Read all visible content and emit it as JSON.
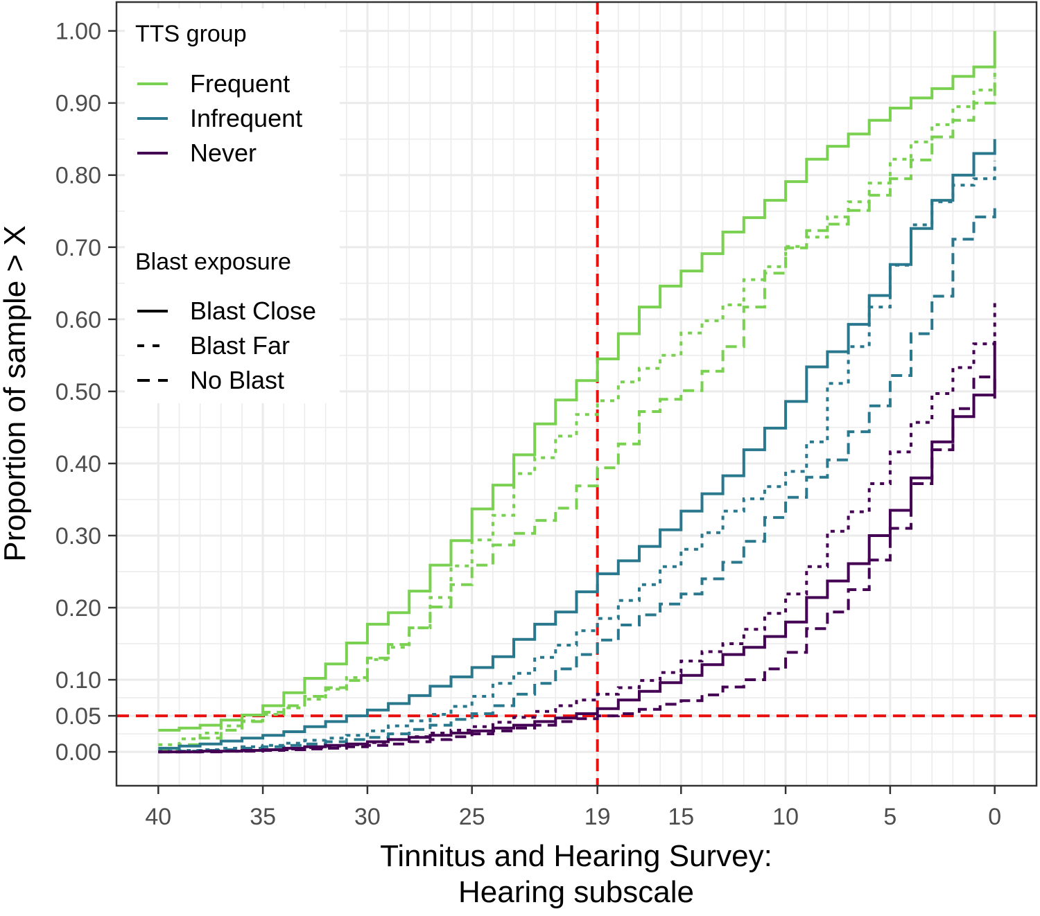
{
  "chart_data": {
    "type": "line",
    "subtype": "step",
    "title": "",
    "xlabel_lines": [
      "Tinnitus and Hearing Survey:",
      "Hearing subscale"
    ],
    "ylabel": "Proportion of sample > X",
    "x_reversed": true,
    "xlim": [
      42,
      -2
    ],
    "ylim": [
      -0.047,
      1.04
    ],
    "x_ticks": [
      40,
      35,
      30,
      25,
      19,
      15,
      10,
      5,
      0
    ],
    "x_tick_labels": [
      "40",
      "35",
      "30",
      "25",
      "19",
      "15",
      "10",
      "5",
      "0"
    ],
    "y_ticks": [
      0,
      0.05,
      0.1,
      0.2,
      0.3,
      0.4,
      0.5,
      0.6,
      0.7,
      0.8,
      0.9,
      1.0
    ],
    "y_tick_labels": [
      "0.00",
      "0.05",
      "0.10",
      "0.20",
      "0.30",
      "0.40",
      "0.50",
      "0.60",
      "0.70",
      "0.80",
      "0.90",
      "1.00"
    ],
    "grid": true,
    "reference_lines": [
      {
        "axis": "x",
        "value": 19,
        "color": "#e8110f",
        "dash": "dashed"
      },
      {
        "axis": "y",
        "value": 0.05,
        "color": "#e8110f",
        "dash": "dashed"
      }
    ],
    "legend": {
      "position": "top-left",
      "groups": [
        {
          "title": "TTS group",
          "entries": [
            {
              "label": "Frequent",
              "color": "#7ad151"
            },
            {
              "label": "Infrequent",
              "color": "#2a788e"
            },
            {
              "label": "Never",
              "color": "#440154"
            }
          ]
        },
        {
          "title": "Blast exposure",
          "entries": [
            {
              "label": "Blast Close",
              "dash": "solid"
            },
            {
              "label": "Blast Far",
              "dash": "dotted"
            },
            {
              "label": "No Blast",
              "dash": "dashed"
            }
          ]
        }
      ]
    },
    "series": [
      {
        "name": "Frequent / Blast Close",
        "tts": "Frequent",
        "blast": "Blast Close",
        "color": "#7ad151",
        "dash": "solid",
        "x": [
          40,
          39,
          38,
          37,
          36,
          35,
          34,
          33,
          32,
          31,
          30,
          29,
          28,
          27,
          26,
          25,
          24,
          23,
          22,
          21,
          20,
          19,
          18,
          17,
          16,
          15,
          14,
          13,
          12,
          11,
          10,
          9,
          8,
          7,
          6,
          5,
          4,
          3,
          2,
          1,
          0
        ],
        "y": [
          0.03,
          0.033,
          0.037,
          0.044,
          0.051,
          0.064,
          0.082,
          0.102,
          0.122,
          0.151,
          0.177,
          0.193,
          0.223,
          0.259,
          0.293,
          0.337,
          0.37,
          0.412,
          0.455,
          0.488,
          0.515,
          0.545,
          0.58,
          0.617,
          0.646,
          0.667,
          0.691,
          0.721,
          0.741,
          0.765,
          0.791,
          0.822,
          0.84,
          0.857,
          0.876,
          0.893,
          0.907,
          0.92,
          0.937,
          0.95,
          1.0
        ]
      },
      {
        "name": "Frequent / Blast Far",
        "tts": "Frequent",
        "blast": "Blast Far",
        "color": "#7ad151",
        "dash": "dotted",
        "x": [
          40,
          39,
          38,
          37,
          36,
          35,
          34,
          33,
          32,
          31,
          30,
          29,
          28,
          27,
          26,
          25,
          24,
          23,
          22,
          21,
          20,
          19,
          18,
          17,
          16,
          15,
          14,
          13,
          12,
          11,
          10,
          9,
          8,
          7,
          6,
          5,
          4,
          3,
          2,
          1,
          0
        ],
        "y": [
          0.01,
          0.018,
          0.026,
          0.036,
          0.043,
          0.052,
          0.061,
          0.073,
          0.087,
          0.103,
          0.128,
          0.145,
          0.172,
          0.214,
          0.258,
          0.294,
          0.328,
          0.386,
          0.408,
          0.438,
          0.468,
          0.487,
          0.513,
          0.532,
          0.55,
          0.581,
          0.598,
          0.62,
          0.655,
          0.673,
          0.701,
          0.714,
          0.742,
          0.763,
          0.789,
          0.822,
          0.846,
          0.87,
          0.895,
          0.918,
          0.95
        ]
      },
      {
        "name": "Frequent / No Blast",
        "tts": "Frequent",
        "blast": "No Blast",
        "color": "#7ad151",
        "dash": "dashed",
        "x": [
          40,
          39,
          38,
          37,
          36,
          35,
          34,
          33,
          32,
          31,
          30,
          29,
          28,
          27,
          26,
          25,
          24,
          23,
          22,
          21,
          20,
          19,
          18,
          17,
          16,
          15,
          14,
          13,
          12,
          11,
          10,
          9,
          8,
          7,
          6,
          5,
          4,
          3,
          2,
          1,
          0
        ],
        "y": [
          0.003,
          0.01,
          0.019,
          0.03,
          0.042,
          0.055,
          0.064,
          0.077,
          0.089,
          0.099,
          0.13,
          0.149,
          0.172,
          0.201,
          0.232,
          0.259,
          0.287,
          0.303,
          0.321,
          0.338,
          0.369,
          0.394,
          0.427,
          0.472,
          0.489,
          0.501,
          0.528,
          0.562,
          0.617,
          0.664,
          0.699,
          0.723,
          0.732,
          0.751,
          0.772,
          0.795,
          0.821,
          0.853,
          0.876,
          0.9,
          0.935
        ]
      },
      {
        "name": "Infrequent / Blast Close",
        "tts": "Infrequent",
        "blast": "Blast Close",
        "color": "#2a788e",
        "dash": "solid",
        "x": [
          40,
          39,
          38,
          37,
          36,
          35,
          34,
          33,
          32,
          31,
          30,
          29,
          28,
          27,
          26,
          25,
          24,
          23,
          22,
          21,
          20,
          19,
          18,
          17,
          16,
          15,
          14,
          13,
          12,
          11,
          10,
          9,
          8,
          7,
          6,
          5,
          4,
          3,
          2,
          1,
          0
        ],
        "y": [
          0.005,
          0.008,
          0.011,
          0.015,
          0.019,
          0.023,
          0.028,
          0.035,
          0.042,
          0.05,
          0.058,
          0.067,
          0.078,
          0.091,
          0.104,
          0.117,
          0.132,
          0.156,
          0.177,
          0.194,
          0.222,
          0.247,
          0.265,
          0.285,
          0.308,
          0.334,
          0.358,
          0.383,
          0.419,
          0.449,
          0.486,
          0.534,
          0.555,
          0.593,
          0.633,
          0.676,
          0.726,
          0.765,
          0.8,
          0.83,
          0.85
        ]
      },
      {
        "name": "Infrequent / Blast Far",
        "tts": "Infrequent",
        "blast": "Blast Far",
        "color": "#2a788e",
        "dash": "dotted",
        "x": [
          40,
          39,
          38,
          37,
          36,
          35,
          34,
          33,
          32,
          31,
          30,
          29,
          28,
          27,
          26,
          25,
          24,
          23,
          22,
          21,
          20,
          19,
          18,
          17,
          16,
          15,
          14,
          13,
          12,
          11,
          10,
          9,
          8,
          7,
          6,
          5,
          4,
          3,
          2,
          1,
          0
        ],
        "y": [
          0.001,
          0.002,
          0.003,
          0.005,
          0.007,
          0.009,
          0.012,
          0.016,
          0.019,
          0.023,
          0.029,
          0.036,
          0.043,
          0.052,
          0.063,
          0.077,
          0.095,
          0.109,
          0.131,
          0.148,
          0.168,
          0.185,
          0.21,
          0.232,
          0.257,
          0.281,
          0.304,
          0.334,
          0.351,
          0.368,
          0.389,
          0.43,
          0.511,
          0.562,
          0.617,
          0.675,
          0.731,
          0.763,
          0.786,
          0.795,
          0.82
        ]
      },
      {
        "name": "Infrequent / No Blast",
        "tts": "Infrequent",
        "blast": "No Blast",
        "color": "#2a788e",
        "dash": "dashed",
        "x": [
          40,
          39,
          38,
          37,
          36,
          35,
          34,
          33,
          32,
          31,
          30,
          29,
          28,
          27,
          26,
          25,
          24,
          23,
          22,
          21,
          20,
          19,
          18,
          17,
          16,
          15,
          14,
          13,
          12,
          11,
          10,
          9,
          8,
          7,
          6,
          5,
          4,
          3,
          2,
          1,
          0
        ],
        "y": [
          0.0,
          0.001,
          0.002,
          0.003,
          0.005,
          0.007,
          0.009,
          0.011,
          0.014,
          0.017,
          0.02,
          0.025,
          0.031,
          0.037,
          0.045,
          0.053,
          0.064,
          0.08,
          0.095,
          0.115,
          0.135,
          0.155,
          0.176,
          0.19,
          0.205,
          0.219,
          0.24,
          0.263,
          0.292,
          0.325,
          0.353,
          0.381,
          0.405,
          0.444,
          0.48,
          0.522,
          0.58,
          0.632,
          0.711,
          0.742,
          0.76
        ]
      },
      {
        "name": "Never / Blast Close",
        "tts": "Never",
        "blast": "Blast Close",
        "color": "#440154",
        "dash": "solid",
        "x": [
          40,
          39,
          38,
          37,
          36,
          35,
          34,
          33,
          32,
          31,
          30,
          29,
          28,
          27,
          26,
          25,
          24,
          23,
          22,
          21,
          20,
          19,
          18,
          17,
          16,
          15,
          14,
          13,
          12,
          11,
          10,
          9,
          8,
          7,
          6,
          5,
          4,
          3,
          2,
          1,
          0
        ],
        "y": [
          0.0,
          0.0,
          0.001,
          0.001,
          0.002,
          0.003,
          0.005,
          0.007,
          0.009,
          0.011,
          0.014,
          0.017,
          0.02,
          0.023,
          0.026,
          0.029,
          0.033,
          0.037,
          0.042,
          0.047,
          0.053,
          0.06,
          0.072,
          0.084,
          0.096,
          0.106,
          0.121,
          0.135,
          0.145,
          0.16,
          0.18,
          0.214,
          0.237,
          0.261,
          0.3,
          0.335,
          0.38,
          0.43,
          0.465,
          0.495,
          0.57
        ]
      },
      {
        "name": "Never / Blast Far",
        "tts": "Never",
        "blast": "Blast Far",
        "color": "#440154",
        "dash": "dotted",
        "x": [
          40,
          39,
          38,
          37,
          36,
          35,
          34,
          33,
          32,
          31,
          30,
          29,
          28,
          27,
          26,
          25,
          24,
          23,
          22,
          21,
          20,
          19,
          18,
          17,
          16,
          15,
          14,
          13,
          12,
          11,
          10,
          9,
          8,
          7,
          6,
          5,
          4,
          3,
          2,
          1,
          0
        ],
        "y": [
          0.0,
          0.0,
          0.001,
          0.001,
          0.002,
          0.003,
          0.004,
          0.006,
          0.008,
          0.01,
          0.013,
          0.017,
          0.021,
          0.026,
          0.03,
          0.035,
          0.041,
          0.048,
          0.056,
          0.064,
          0.072,
          0.08,
          0.089,
          0.099,
          0.11,
          0.126,
          0.139,
          0.15,
          0.17,
          0.192,
          0.219,
          0.257,
          0.306,
          0.333,
          0.372,
          0.416,
          0.457,
          0.497,
          0.533,
          0.566,
          0.63
        ]
      },
      {
        "name": "Never / No Blast",
        "tts": "Never",
        "blast": "No Blast",
        "color": "#440154",
        "dash": "dashed",
        "x": [
          40,
          39,
          38,
          37,
          36,
          35,
          34,
          33,
          32,
          31,
          30,
          29,
          28,
          27,
          26,
          25,
          24,
          23,
          22,
          21,
          20,
          19,
          18,
          17,
          16,
          15,
          14,
          13,
          12,
          11,
          10,
          9,
          8,
          7,
          6,
          5,
          4,
          3,
          2,
          1,
          0
        ],
        "y": [
          0.0,
          0.0,
          0.0,
          0.001,
          0.001,
          0.002,
          0.003,
          0.004,
          0.005,
          0.007,
          0.009,
          0.011,
          0.014,
          0.017,
          0.021,
          0.025,
          0.029,
          0.033,
          0.037,
          0.042,
          0.046,
          0.05,
          0.053,
          0.059,
          0.066,
          0.071,
          0.079,
          0.09,
          0.1,
          0.115,
          0.138,
          0.171,
          0.194,
          0.225,
          0.266,
          0.31,
          0.372,
          0.419,
          0.476,
          0.52,
          0.49
        ]
      }
    ]
  }
}
